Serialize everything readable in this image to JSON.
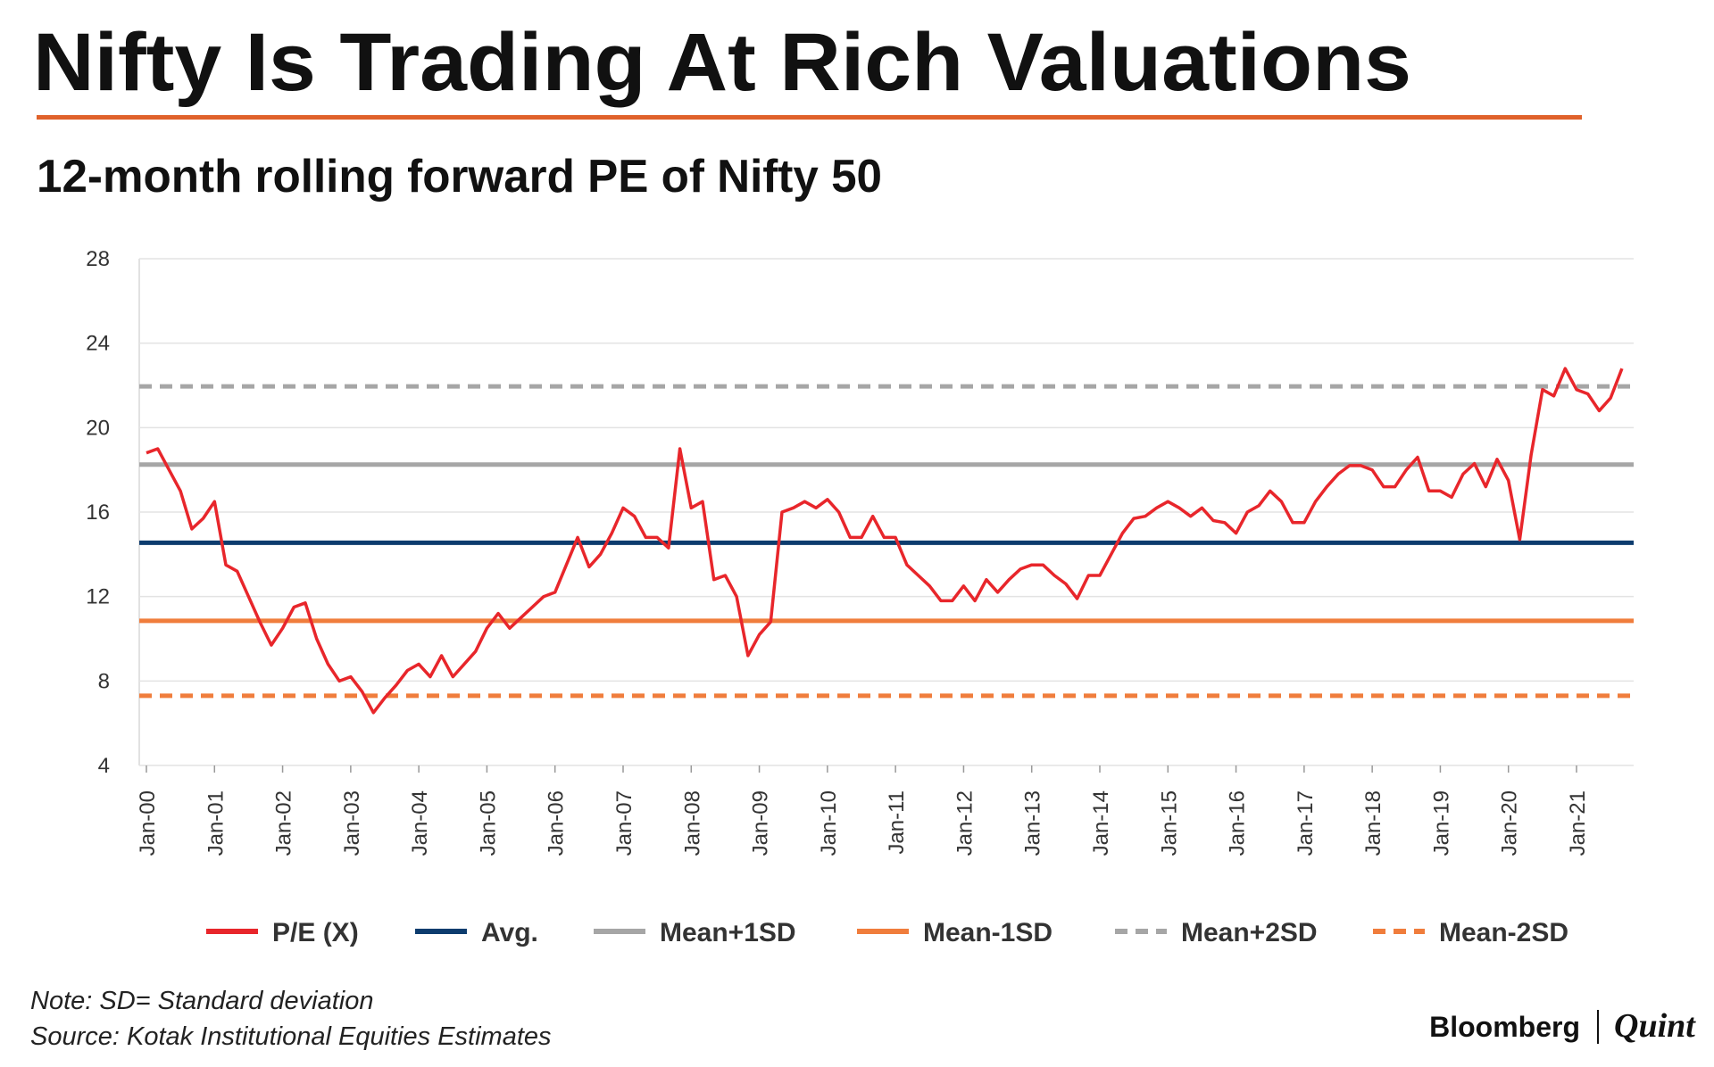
{
  "chart_data": {
    "type": "line",
    "title": "Nifty Is Trading At Rich Valuations",
    "subtitle": "12-month rolling forward PE of Nifty 50",
    "categories": [
      "Jan-00",
      null,
      null,
      null,
      null,
      null,
      "Jan-01",
      null,
      null,
      null,
      null,
      null,
      "Jan-02",
      null,
      null,
      null,
      null,
      null,
      "Jan-03",
      null,
      null,
      null,
      null,
      null,
      "Jan-04",
      null,
      null,
      null,
      null,
      null,
      "Jan-05",
      null,
      null,
      null,
      null,
      null,
      "Jan-06",
      null,
      null,
      null,
      null,
      null,
      "Jan-07",
      null,
      null,
      null,
      null,
      null,
      "Jan-08",
      null,
      null,
      null,
      null,
      null,
      "Jan-09",
      null,
      null,
      null,
      null,
      null,
      "Jan-10",
      null,
      null,
      null,
      null,
      null,
      "Jan-11",
      null,
      null,
      null,
      null,
      null,
      "Jan-12",
      null,
      null,
      null,
      null,
      null,
      "Jan-13",
      null,
      null,
      null,
      null,
      null,
      "Jan-14",
      null,
      null,
      null,
      null,
      null,
      "Jan-15",
      null,
      null,
      null,
      null,
      null,
      "Jan-16",
      null,
      null,
      null,
      null,
      null,
      "Jan-17",
      null,
      null,
      null,
      null,
      null,
      "Jan-18",
      null,
      null,
      null,
      null,
      null,
      "Jan-19",
      null,
      null,
      null,
      null,
      null,
      "Jan-20",
      null,
      null,
      null,
      null,
      null,
      "Jan-21",
      null,
      null,
      null,
      null
    ],
    "series": [
      {
        "name": "P/E (X)",
        "color": "#e8262b",
        "values": [
          18.8,
          19.0,
          18.0,
          17.0,
          15.2,
          15.7,
          16.5,
          13.5,
          13.2,
          12.0,
          10.8,
          9.7,
          10.5,
          11.5,
          11.7,
          10.0,
          8.8,
          8.0,
          8.2,
          7.5,
          6.5,
          7.2,
          7.8,
          8.5,
          8.8,
          8.2,
          9.2,
          8.2,
          8.8,
          9.4,
          10.5,
          11.2,
          10.5,
          11.0,
          11.5,
          12.0,
          12.2,
          13.5,
          14.8,
          13.4,
          14.0,
          15.0,
          16.2,
          15.8,
          14.8,
          14.8,
          14.3,
          19.0,
          16.2,
          16.5,
          12.8,
          13.0,
          12.0,
          9.2,
          10.2,
          10.8,
          16.0,
          16.2,
          16.5,
          16.2,
          16.6,
          16.0,
          14.8,
          14.8,
          15.8,
          14.8,
          14.8,
          13.5,
          13.0,
          12.5,
          11.8,
          11.8,
          12.5,
          11.8,
          12.8,
          12.2,
          12.8,
          13.3,
          13.5,
          13.5,
          13.0,
          12.6,
          11.9,
          13.0,
          13.0,
          14.0,
          15.0,
          15.7,
          15.8,
          16.2,
          16.5,
          16.2,
          15.8,
          16.2,
          15.6,
          15.5,
          15.0,
          16.0,
          16.3,
          17.0,
          16.5,
          15.5,
          15.5,
          16.5,
          17.2,
          17.8,
          18.2,
          18.2,
          18.0,
          17.2,
          17.2,
          18.0,
          18.6,
          17.0,
          17.0,
          16.7,
          17.8,
          18.3,
          17.2,
          18.5,
          17.5,
          14.7,
          18.7,
          21.8,
          21.5,
          22.8,
          21.8,
          21.6,
          20.8,
          21.4,
          22.8
        ]
      }
    ],
    "reference_lines": [
      {
        "name": "Avg.",
        "color": "#0d3c6e",
        "value": 14.55,
        "style": "solid"
      },
      {
        "name": "Mean+1SD",
        "color": "#a6a6a6",
        "value": 18.25,
        "style": "solid"
      },
      {
        "name": "Mean-1SD",
        "color": "#f07d3c",
        "value": 10.85,
        "style": "solid"
      },
      {
        "name": "Mean+2SD",
        "color": "#a6a6a6",
        "value": 21.95,
        "style": "dashed"
      },
      {
        "name": "Mean-2SD",
        "color": "#f07d3c",
        "value": 7.3,
        "style": "dashed"
      }
    ],
    "ylim": [
      4,
      28
    ],
    "yticks": [
      4,
      8,
      12,
      16,
      20,
      24,
      28
    ],
    "grid": true,
    "note": "Note: SD= Standard deviation",
    "source": "Source: Kotak Institutional Equities Estimates"
  },
  "brand": {
    "left": "Bloomberg",
    "right": "Quint"
  }
}
